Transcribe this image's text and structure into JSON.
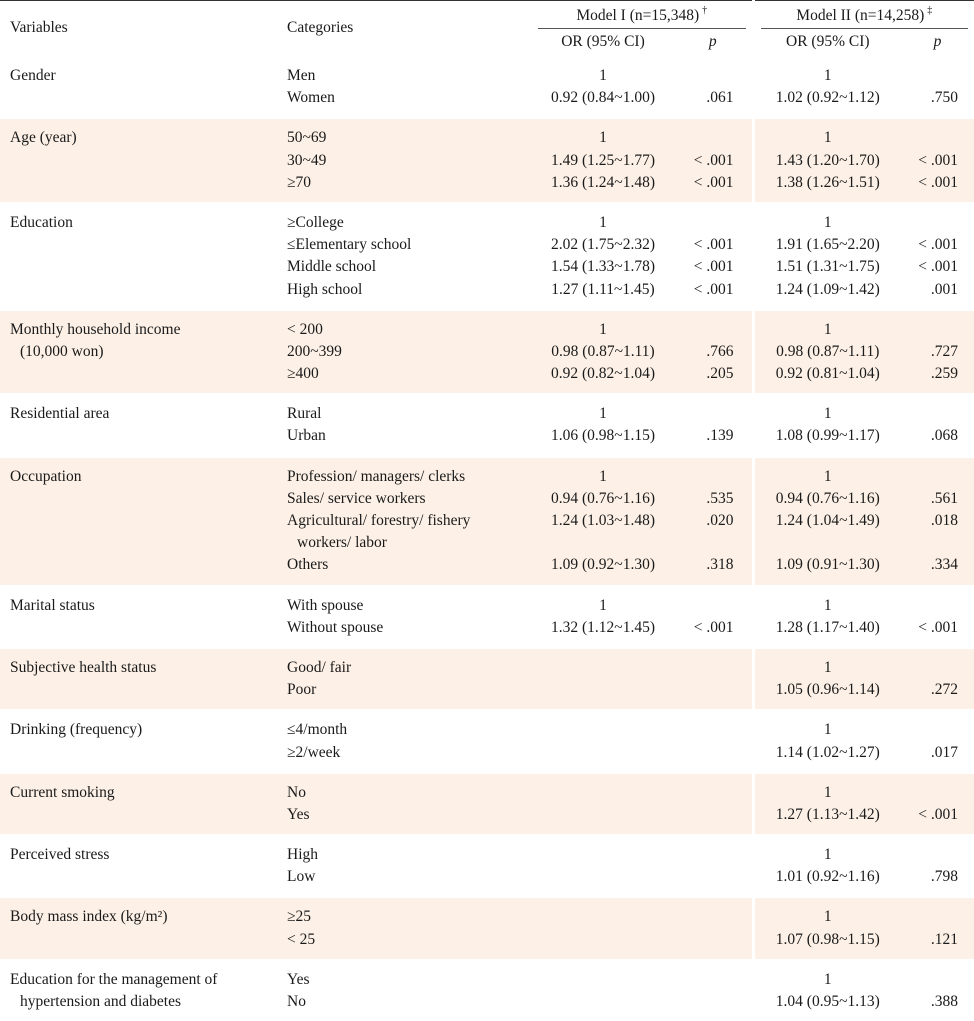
{
  "header": {
    "variables": "Variables",
    "categories": "Categories",
    "model1": "Model I (n=15,348)",
    "model1_mark": "†",
    "model2": "Model II (n=14,258)",
    "model2_mark": "‡",
    "or_ci": "OR (95% CI)",
    "p": "p"
  },
  "rows": [
    {
      "variable": [
        "Gender"
      ],
      "shade": false,
      "categories": [
        "Men",
        "Women"
      ],
      "m1_or": [
        "1",
        "0.92 (0.84~1.00)"
      ],
      "m1_p": [
        "",
        ".061"
      ],
      "m2_or": [
        "1",
        "1.02 (0.92~1.12)"
      ],
      "m2_p": [
        "",
        ".750"
      ]
    },
    {
      "variable": [
        "Age (year)"
      ],
      "shade": true,
      "categories": [
        "50~69",
        "30~49",
        "≥70"
      ],
      "m1_or": [
        "1",
        "1.49 (1.25~1.77)",
        "1.36 (1.24~1.48)"
      ],
      "m1_p": [
        "",
        "< .001",
        "< .001"
      ],
      "m2_or": [
        "1",
        "1.43 (1.20~1.70)",
        "1.38 (1.26~1.51)"
      ],
      "m2_p": [
        "",
        "< .001",
        "< .001"
      ]
    },
    {
      "variable": [
        "Education"
      ],
      "shade": false,
      "categories": [
        "≥College",
        "≤Elementary school",
        "Middle school",
        "High school"
      ],
      "m1_or": [
        "1",
        "2.02 (1.75~2.32)",
        "1.54 (1.33~1.78)",
        "1.27 (1.11~1.45)"
      ],
      "m1_p": [
        "",
        "< .001",
        "< .001",
        "< .001"
      ],
      "m2_or": [
        "1",
        "1.91 (1.65~2.20)",
        "1.51 (1.31~1.75)",
        "1.24 (1.09~1.42)"
      ],
      "m2_p": [
        "",
        "< .001",
        "< .001",
        ".001"
      ]
    },
    {
      "variable": [
        "Monthly household income",
        "(10,000 won)"
      ],
      "shade": true,
      "categories": [
        "< 200",
        "200~399",
        "≥400"
      ],
      "m1_or": [
        "1",
        "0.98 (0.87~1.11)",
        "0.92 (0.82~1.04)"
      ],
      "m1_p": [
        "",
        ".766",
        ".205"
      ],
      "m2_or": [
        "1",
        "0.98 (0.87~1.11)",
        "0.92 (0.81~1.04)"
      ],
      "m2_p": [
        "",
        ".727",
        ".259"
      ]
    },
    {
      "variable": [
        "Residential area"
      ],
      "shade": false,
      "categories": [
        "Rural",
        "Urban"
      ],
      "m1_or": [
        "1",
        "1.06 (0.98~1.15)"
      ],
      "m1_p": [
        "",
        ".139"
      ],
      "m2_or": [
        "1",
        "1.08 (0.99~1.17)"
      ],
      "m2_p": [
        "",
        ".068"
      ]
    },
    {
      "variable": [
        "Occupation"
      ],
      "shade": true,
      "categories": [
        "Profession/ managers/ clerks",
        "Sales/ service workers",
        "Agricultural/ forestry/ fishery",
        "workers/ labor",
        "Others"
      ],
      "m1_or": [
        "1",
        "0.94 (0.76~1.16)",
        "1.24 (1.03~1.48)",
        "",
        "1.09 (0.92~1.30)"
      ],
      "m1_p": [
        "",
        ".535",
        ".020",
        "",
        ".318"
      ],
      "m2_or": [
        "1",
        "0.94 (0.76~1.16)",
        "1.24 (1.04~1.49)",
        "",
        "1.09 (0.91~1.30)"
      ],
      "m2_p": [
        "",
        ".561",
        ".018",
        "",
        ".334"
      ]
    },
    {
      "variable": [
        "Marital status"
      ],
      "shade": false,
      "categories": [
        "With spouse",
        "Without spouse"
      ],
      "m1_or": [
        "1",
        "1.32 (1.12~1.45)"
      ],
      "m1_p": [
        "",
        "< .001"
      ],
      "m2_or": [
        "1",
        "1.28 (1.17~1.40)"
      ],
      "m2_p": [
        "",
        "< .001"
      ]
    },
    {
      "variable": [
        "Subjective health status"
      ],
      "shade": true,
      "categories": [
        "Good/ fair",
        "Poor"
      ],
      "m1_or": [
        "",
        ""
      ],
      "m1_p": [
        "",
        ""
      ],
      "m2_or": [
        "1",
        "1.05 (0.96~1.14)"
      ],
      "m2_p": [
        "",
        ".272"
      ]
    },
    {
      "variable": [
        "Drinking (frequency)"
      ],
      "shade": false,
      "categories": [
        "≤4/month",
        "≥2/week"
      ],
      "m1_or": [
        "",
        ""
      ],
      "m1_p": [
        "",
        ""
      ],
      "m2_or": [
        "1",
        "1.14 (1.02~1.27)"
      ],
      "m2_p": [
        "",
        ".017"
      ]
    },
    {
      "variable": [
        "Current smoking"
      ],
      "shade": true,
      "categories": [
        "No",
        "Yes"
      ],
      "m1_or": [
        "",
        ""
      ],
      "m1_p": [
        "",
        ""
      ],
      "m2_or": [
        "1",
        "1.27 (1.13~1.42)"
      ],
      "m2_p": [
        "",
        "< .001"
      ]
    },
    {
      "variable": [
        "Perceived stress"
      ],
      "shade": false,
      "categories": [
        "High",
        "Low"
      ],
      "m1_or": [
        "",
        ""
      ],
      "m1_p": [
        "",
        ""
      ],
      "m2_or": [
        "1",
        "1.01 (0.92~1.16)"
      ],
      "m2_p": [
        "",
        ".798"
      ]
    },
    {
      "variable": [
        "Body mass index (kg/m²)"
      ],
      "shade": true,
      "categories": [
        "≥25",
        "< 25"
      ],
      "m1_or": [
        "",
        ""
      ],
      "m1_p": [
        "",
        ""
      ],
      "m2_or": [
        "1",
        "1.07 (0.98~1.15)"
      ],
      "m2_p": [
        "",
        ".121"
      ]
    },
    {
      "variable": [
        "Education for the management of",
        "hypertension and diabetes"
      ],
      "shade": false,
      "categories": [
        "Yes",
        "No"
      ],
      "m1_or": [
        "",
        ""
      ],
      "m1_p": [
        "",
        ""
      ],
      "m2_or": [
        "1",
        "1.04 (0.95~1.13)"
      ],
      "m2_p": [
        "",
        ".388"
      ]
    }
  ]
}
